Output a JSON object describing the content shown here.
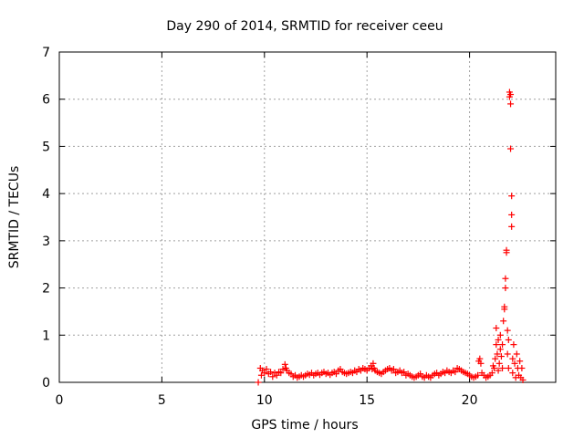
{
  "chart_data": {
    "type": "scatter",
    "title": "Day 290 of 2014, SRMTID for receiver ceeu",
    "xlabel": "GPS time / hours",
    "ylabel": "SRMTID / TECUs",
    "xlim": [
      0,
      24.2
    ],
    "ylim": [
      0,
      7
    ],
    "xticks": [
      "0",
      "5",
      "10",
      "15",
      "20"
    ],
    "xtick_values": [
      0,
      5,
      10,
      15,
      20
    ],
    "yticks": [
      "0",
      "1",
      "2",
      "3",
      "4",
      "5",
      "6",
      "7"
    ],
    "ytick_values": [
      0,
      1,
      2,
      3,
      4,
      5,
      6,
      7
    ],
    "grid": true,
    "marker": "+",
    "color": "#ff0000",
    "series": [
      {
        "name": "SRMTID",
        "points": [
          [
            9.7,
            0.0
          ],
          [
            9.8,
            0.3
          ],
          [
            9.85,
            0.15
          ],
          [
            9.9,
            0.25
          ],
          [
            10.0,
            0.2
          ],
          [
            10.1,
            0.28
          ],
          [
            10.2,
            0.18
          ],
          [
            10.3,
            0.22
          ],
          [
            10.4,
            0.12
          ],
          [
            10.5,
            0.2
          ],
          [
            10.6,
            0.15
          ],
          [
            10.7,
            0.22
          ],
          [
            10.8,
            0.2
          ],
          [
            10.9,
            0.28
          ],
          [
            11.0,
            0.38
          ],
          [
            11.05,
            0.3
          ],
          [
            11.1,
            0.25
          ],
          [
            11.2,
            0.2
          ],
          [
            11.3,
            0.18
          ],
          [
            11.4,
            0.12
          ],
          [
            11.5,
            0.15
          ],
          [
            11.6,
            0.1
          ],
          [
            11.7,
            0.12
          ],
          [
            11.8,
            0.15
          ],
          [
            11.9,
            0.12
          ],
          [
            12.0,
            0.15
          ],
          [
            12.1,
            0.18
          ],
          [
            12.2,
            0.16
          ],
          [
            12.3,
            0.2
          ],
          [
            12.4,
            0.15
          ],
          [
            12.5,
            0.18
          ],
          [
            12.6,
            0.2
          ],
          [
            12.7,
            0.16
          ],
          [
            12.8,
            0.2
          ],
          [
            12.9,
            0.22
          ],
          [
            13.0,
            0.18
          ],
          [
            13.1,
            0.2
          ],
          [
            13.2,
            0.16
          ],
          [
            13.3,
            0.2
          ],
          [
            13.4,
            0.22
          ],
          [
            13.5,
            0.18
          ],
          [
            13.6,
            0.25
          ],
          [
            13.7,
            0.28
          ],
          [
            13.8,
            0.22
          ],
          [
            13.9,
            0.2
          ],
          [
            14.0,
            0.18
          ],
          [
            14.1,
            0.2
          ],
          [
            14.2,
            0.22
          ],
          [
            14.3,
            0.2
          ],
          [
            14.4,
            0.25
          ],
          [
            14.5,
            0.22
          ],
          [
            14.6,
            0.28
          ],
          [
            14.7,
            0.25
          ],
          [
            14.8,
            0.3
          ],
          [
            14.9,
            0.28
          ],
          [
            15.0,
            0.25
          ],
          [
            15.1,
            0.3
          ],
          [
            15.2,
            0.35
          ],
          [
            15.25,
            0.28
          ],
          [
            15.3,
            0.4
          ],
          [
            15.35,
            0.3
          ],
          [
            15.4,
            0.25
          ],
          [
            15.5,
            0.22
          ],
          [
            15.6,
            0.2
          ],
          [
            15.7,
            0.18
          ],
          [
            15.8,
            0.22
          ],
          [
            15.9,
            0.25
          ],
          [
            16.0,
            0.28
          ],
          [
            16.1,
            0.3
          ],
          [
            16.2,
            0.25
          ],
          [
            16.3,
            0.28
          ],
          [
            16.4,
            0.2
          ],
          [
            16.5,
            0.22
          ],
          [
            16.6,
            0.25
          ],
          [
            16.7,
            0.2
          ],
          [
            16.8,
            0.22
          ],
          [
            16.9,
            0.15
          ],
          [
            17.0,
            0.18
          ],
          [
            17.1,
            0.15
          ],
          [
            17.2,
            0.12
          ],
          [
            17.3,
            0.1
          ],
          [
            17.4,
            0.12
          ],
          [
            17.5,
            0.15
          ],
          [
            17.6,
            0.18
          ],
          [
            17.7,
            0.12
          ],
          [
            17.8,
            0.1
          ],
          [
            17.9,
            0.15
          ],
          [
            18.0,
            0.12
          ],
          [
            18.1,
            0.1
          ],
          [
            18.2,
            0.15
          ],
          [
            18.3,
            0.18
          ],
          [
            18.4,
            0.2
          ],
          [
            18.5,
            0.15
          ],
          [
            18.6,
            0.18
          ],
          [
            18.7,
            0.22
          ],
          [
            18.8,
            0.2
          ],
          [
            18.9,
            0.25
          ],
          [
            19.0,
            0.22
          ],
          [
            19.1,
            0.2
          ],
          [
            19.2,
            0.25
          ],
          [
            19.3,
            0.22
          ],
          [
            19.4,
            0.3
          ],
          [
            19.5,
            0.28
          ],
          [
            19.6,
            0.25
          ],
          [
            19.7,
            0.22
          ],
          [
            19.8,
            0.2
          ],
          [
            19.9,
            0.18
          ],
          [
            20.0,
            0.15
          ],
          [
            20.1,
            0.12
          ],
          [
            20.2,
            0.1
          ],
          [
            20.3,
            0.12
          ],
          [
            20.4,
            0.15
          ],
          [
            20.45,
            0.45
          ],
          [
            20.5,
            0.5
          ],
          [
            20.55,
            0.4
          ],
          [
            20.6,
            0.2
          ],
          [
            20.7,
            0.15
          ],
          [
            20.8,
            0.1
          ],
          [
            20.9,
            0.12
          ],
          [
            21.0,
            0.15
          ],
          [
            21.1,
            0.2
          ],
          [
            21.15,
            0.35
          ],
          [
            21.2,
            0.3
          ],
          [
            21.25,
            0.5
          ],
          [
            21.3,
            0.8
          ],
          [
            21.3,
            1.15
          ],
          [
            21.35,
            0.6
          ],
          [
            21.4,
            0.9
          ],
          [
            21.4,
            0.25
          ],
          [
            21.45,
            0.4
          ],
          [
            21.5,
            0.7
          ],
          [
            21.5,
            1.0
          ],
          [
            21.55,
            0.55
          ],
          [
            21.6,
            0.3
          ],
          [
            21.6,
            0.8
          ],
          [
            21.65,
            1.3
          ],
          [
            21.7,
            1.6
          ],
          [
            21.7,
            1.55
          ],
          [
            21.75,
            2.0
          ],
          [
            21.75,
            2.2
          ],
          [
            21.8,
            2.8
          ],
          [
            21.8,
            2.75
          ],
          [
            21.85,
            1.1
          ],
          [
            21.85,
            0.6
          ],
          [
            21.9,
            0.9
          ],
          [
            21.9,
            0.3
          ],
          [
            21.95,
            6.15
          ],
          [
            21.95,
            6.05
          ],
          [
            22.0,
            5.9
          ],
          [
            22.0,
            6.1
          ],
          [
            22.0,
            4.95
          ],
          [
            22.05,
            3.95
          ],
          [
            22.05,
            3.55
          ],
          [
            22.05,
            3.3
          ],
          [
            22.1,
            0.5
          ],
          [
            22.1,
            0.2
          ],
          [
            22.15,
            0.8
          ],
          [
            22.2,
            0.4
          ],
          [
            22.25,
            0.1
          ],
          [
            22.3,
            0.6
          ],
          [
            22.35,
            0.3
          ],
          [
            22.4,
            0.15
          ],
          [
            22.45,
            0.45
          ],
          [
            22.5,
            0.1
          ],
          [
            22.55,
            0.3
          ],
          [
            22.6,
            0.05
          ]
        ]
      }
    ]
  }
}
